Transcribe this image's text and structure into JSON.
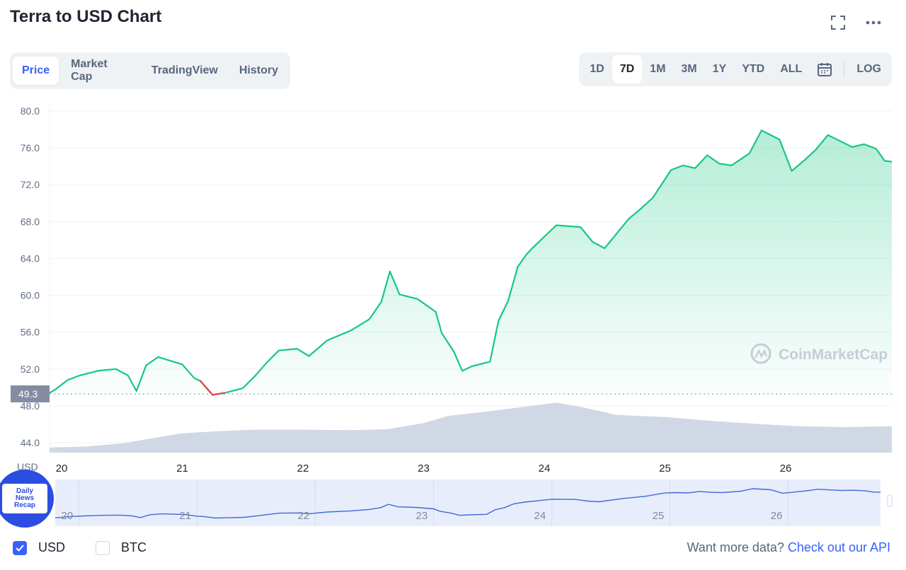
{
  "header": {
    "title": "Terra to USD Chart"
  },
  "icons": {
    "fullscreen": "fullscreen-icon",
    "more": "more-icon",
    "calendar": "calendar-icon"
  },
  "tabs": [
    {
      "label": "Price",
      "active": true
    },
    {
      "label": "Market Cap",
      "active": false
    },
    {
      "label": "TradingView",
      "active": false
    },
    {
      "label": "History",
      "active": false
    }
  ],
  "ranges": [
    {
      "label": "1D",
      "active": false
    },
    {
      "label": "7D",
      "active": true
    },
    {
      "label": "1M",
      "active": false
    },
    {
      "label": "3M",
      "active": false
    },
    {
      "label": "1Y",
      "active": false
    },
    {
      "label": "YTD",
      "active": false
    },
    {
      "label": "ALL",
      "active": false
    }
  ],
  "log_label": "LOG",
  "watermark": "CoinMarketCap",
  "overlay_badge": {
    "text": "Daily\nNews\nRecap"
  },
  "currencies": [
    {
      "label": "USD",
      "checked": true
    },
    {
      "label": "BTC",
      "checked": false
    }
  ],
  "footer": {
    "prompt": "Want more data?",
    "link": "Check out our API"
  },
  "colors": {
    "up": "#16c784",
    "down": "#ea3943",
    "accent": "#3861fb",
    "volume": "#cfd6e4",
    "navigator": "#e8edfc"
  },
  "chart_data": {
    "type": "line",
    "y_unit_label": "USD",
    "ylim": [
      42.0,
      80.0
    ],
    "y_ticks": [
      "80.0",
      "76.0",
      "72.0",
      "68.0",
      "64.0",
      "60.0",
      "56.0",
      "52.0",
      "48.0",
      "44.0"
    ],
    "x_ticks": [
      "20",
      "21",
      "22",
      "23",
      "24",
      "25",
      "26"
    ],
    "x_range": [
      19.9,
      26.88
    ],
    "reference_price": 49.3,
    "reference_label": "49.3",
    "price_series": {
      "x": [
        19.9,
        19.95,
        20.05,
        20.15,
        20.3,
        20.45,
        20.55,
        20.62,
        20.7,
        20.8,
        20.9,
        21.0,
        21.1,
        21.15,
        21.25,
        21.35,
        21.5,
        21.6,
        21.7,
        21.8,
        21.95,
        22.05,
        22.2,
        22.4,
        22.55,
        22.65,
        22.72,
        22.8,
        22.95,
        23.1,
        23.15,
        23.25,
        23.32,
        23.4,
        23.55,
        23.62,
        23.7,
        23.78,
        23.85,
        23.9,
        24.1,
        24.3,
        24.4,
        24.5,
        24.7,
        24.8,
        24.9,
        25.05,
        25.15,
        25.25,
        25.35,
        25.45,
        25.55,
        25.7,
        25.8,
        25.95,
        26.05,
        26.15,
        26.25,
        26.35,
        26.55,
        26.65,
        26.75,
        26.82,
        26.88
      ],
      "y": [
        49.4,
        49.8,
        50.8,
        51.3,
        51.8,
        52.0,
        51.3,
        49.6,
        52.4,
        53.3,
        52.9,
        52.5,
        51.0,
        50.7,
        49.2,
        49.4,
        49.9,
        51.2,
        52.7,
        54.0,
        54.2,
        53.4,
        55.1,
        56.2,
        57.4,
        59.3,
        62.6,
        60.1,
        59.6,
        58.2,
        55.9,
        53.9,
        51.8,
        52.3,
        52.8,
        57.2,
        59.4,
        63.1,
        64.4,
        65.1,
        67.6,
        67.4,
        65.8,
        65.1,
        68.3,
        69.4,
        70.6,
        73.6,
        74.1,
        73.8,
        75.2,
        74.3,
        74.1,
        75.4,
        77.9,
        76.9,
        73.5,
        74.6,
        75.8,
        77.4,
        76.1,
        76.4,
        75.9,
        74.6,
        74.5
      ]
    },
    "volume_series": {
      "x": [
        19.9,
        20.2,
        20.5,
        20.8,
        21.0,
        21.3,
        21.6,
        22.0,
        22.4,
        22.7,
        23.0,
        23.2,
        23.5,
        23.7,
        23.9,
        24.1,
        24.3,
        24.6,
        25.0,
        25.4,
        25.8,
        26.1,
        26.5,
        26.88
      ],
      "level": [
        0.1,
        0.12,
        0.18,
        0.3,
        0.38,
        0.42,
        0.45,
        0.45,
        0.44,
        0.46,
        0.58,
        0.72,
        0.8,
        0.86,
        0.92,
        0.98,
        0.9,
        0.74,
        0.7,
        0.62,
        0.56,
        0.52,
        0.5,
        0.52
      ]
    },
    "navigator_ticks": [
      "20",
      "21",
      "22",
      "23",
      "24",
      "25",
      "26"
    ],
    "grid": true
  }
}
